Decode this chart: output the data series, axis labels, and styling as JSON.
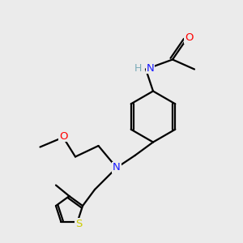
{
  "background_color": "#ebebeb",
  "atom_colors": {
    "C": "#000000",
    "N": "#1a1aff",
    "O": "#ff0000",
    "S": "#cccc00",
    "H": "#7aabb8"
  },
  "bond_color": "#000000",
  "bond_width": 1.6
}
